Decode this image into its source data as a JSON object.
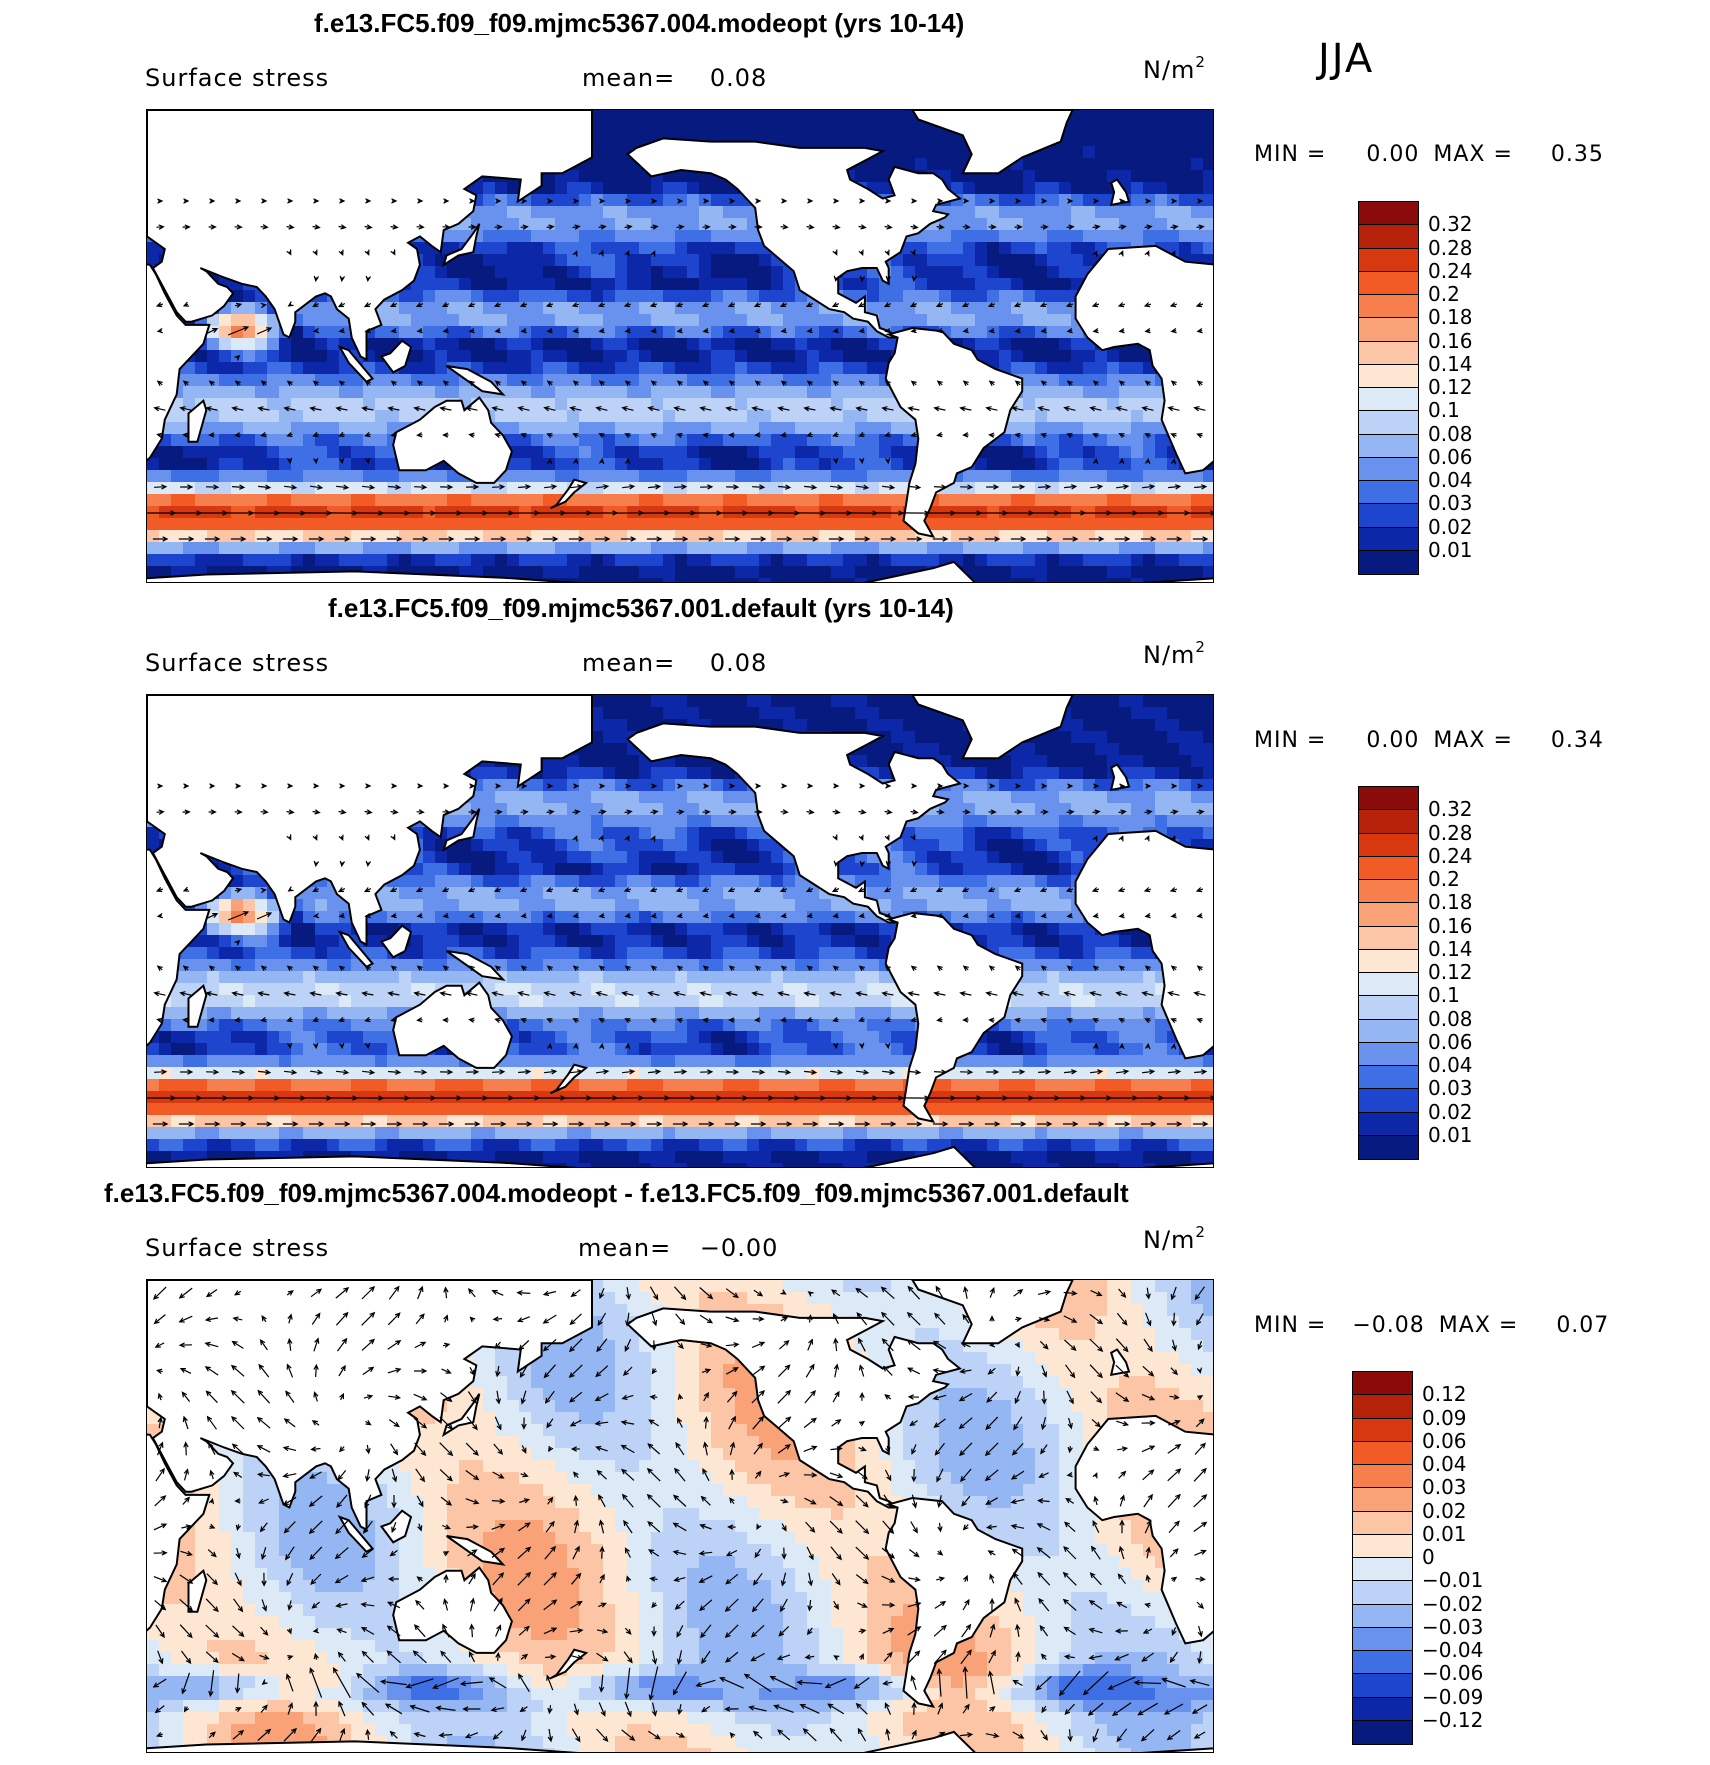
{
  "season": "JJA",
  "panels": [
    {
      "title": "f.e13.FC5.f09_f09.mjmc5367.004.modeopt (yrs 10-14)",
      "variable": "Surface stress",
      "mean_label": "mean=",
      "mean_value": "0.08",
      "units": "N/m",
      "units_exp": "2",
      "min_label": "MIN =",
      "min_value": "0.00",
      "max_label": "MAX =",
      "max_value": "0.35",
      "colorbar": {
        "levels": [
          "0.32",
          "0.28",
          "0.24",
          "0.2",
          "0.18",
          "0.16",
          "0.14",
          "0.12",
          "0.1",
          "0.08",
          "0.06",
          "0.04",
          "0.03",
          "0.02",
          "0.01"
        ],
        "colors": [
          "#8b0a0a",
          "#b52209",
          "#d8380f",
          "#f25a26",
          "#f77f4d",
          "#f9a177",
          "#fcc5a5",
          "#fde6d2",
          "#dceaf7",
          "#bcd2f6",
          "#94b6f3",
          "#6992ee",
          "#3e6fe4",
          "#1d45ce",
          "#0c28a8",
          "#061a80"
        ]
      },
      "vmax": 0.35,
      "scheme": "seq"
    },
    {
      "title": "f.e13.FC5.f09_f09.mjmc5367.001.default (yrs 10-14)",
      "variable": "Surface stress",
      "mean_label": "mean=",
      "mean_value": "0.08",
      "units": "N/m",
      "units_exp": "2",
      "min_label": "MIN =",
      "min_value": "0.00",
      "max_label": "MAX =",
      "max_value": "0.34",
      "colorbar": {
        "levels": [
          "0.32",
          "0.28",
          "0.24",
          "0.2",
          "0.18",
          "0.16",
          "0.14",
          "0.12",
          "0.1",
          "0.08",
          "0.06",
          "0.04",
          "0.03",
          "0.02",
          "0.01"
        ],
        "colors": [
          "#8b0a0a",
          "#b52209",
          "#d8380f",
          "#f25a26",
          "#f77f4d",
          "#f9a177",
          "#fcc5a5",
          "#fde6d2",
          "#dceaf7",
          "#bcd2f6",
          "#94b6f3",
          "#6992ee",
          "#3e6fe4",
          "#1d45ce",
          "#0c28a8",
          "#061a80"
        ]
      },
      "vmax": 0.34,
      "scheme": "seq"
    },
    {
      "title": "f.e13.FC5.f09_f09.mjmc5367.004.modeopt - f.e13.FC5.f09_f09.mjmc5367.001.default",
      "variable": "Surface stress",
      "mean_label": "mean=",
      "mean_value": "−0.00",
      "units": "N/m",
      "units_exp": "2",
      "min_label": "MIN =",
      "min_value": "−0.08",
      "max_label": "MAX =",
      "max_value": "0.07",
      "colorbar": {
        "levels": [
          "0.12",
          "0.09",
          "0.06",
          "0.04",
          "0.03",
          "0.02",
          "0.01",
          "0",
          "−0.01",
          "−0.02",
          "−0.03",
          "−0.04",
          "−0.06",
          "−0.09",
          "−0.12"
        ],
        "colors": [
          "#8b0a0a",
          "#b52209",
          "#d8380f",
          "#f25a26",
          "#f77f4d",
          "#f9a177",
          "#fcc5a5",
          "#fde6d2",
          "#dceaf7",
          "#bcd2f6",
          "#94b6f3",
          "#6992ee",
          "#3e6fe4",
          "#1d45ce",
          "#0c28a8",
          "#061a80"
        ]
      },
      "vmax": 0.07,
      "scheme": "div"
    }
  ]
}
